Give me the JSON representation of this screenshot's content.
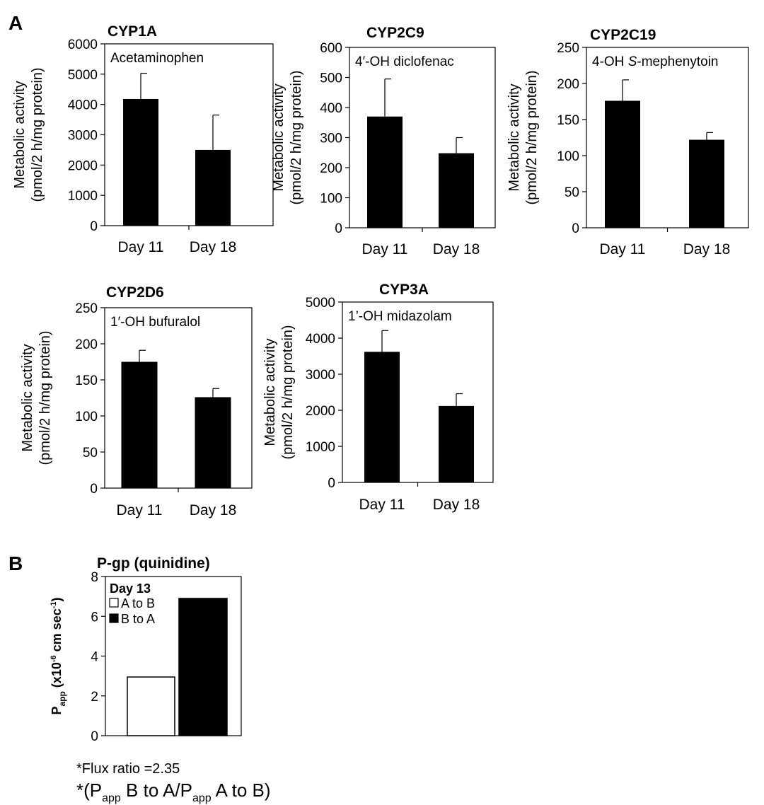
{
  "panel_labels": {
    "a": "A",
    "b": "B"
  },
  "y_label": {
    "line1": "Metabolic activity",
    "line2": "(pmol/2 h/mg protein)"
  },
  "chart_data": [
    {
      "type": "bar",
      "title": "CYP1A",
      "substrate": "Acetaminophen",
      "categories": [
        "Day 11",
        "Day 18"
      ],
      "values": [
        4180,
        2500
      ],
      "errors": [
        850,
        1150
      ],
      "ylim": [
        0,
        6000
      ],
      "yticks": [
        0,
        1000,
        2000,
        3000,
        4000,
        5000,
        6000
      ],
      "ylabel": "Metabolic activity (pmol/2 h/mg protein)"
    },
    {
      "type": "bar",
      "title": "CYP2C9",
      "substrate": "4′-OH diclofenac",
      "categories": [
        "Day 11",
        "Day 18"
      ],
      "values": [
        370,
        248
      ],
      "errors": [
        125,
        52
      ],
      "ylim": [
        0,
        600
      ],
      "yticks": [
        0,
        100,
        200,
        300,
        400,
        500,
        600
      ],
      "ylabel": "Metabolic activity (pmol/2 h/mg protein)"
    },
    {
      "type": "bar",
      "title": "CYP2C19",
      "substrate_parts": [
        "4-OH ",
        "S",
        "-mephenytoin"
      ],
      "categories": [
        "Day 11",
        "Day 18"
      ],
      "values": [
        176,
        122
      ],
      "errors": [
        29,
        10
      ],
      "ylim": [
        0,
        250
      ],
      "yticks": [
        0,
        50,
        100,
        150,
        200,
        250
      ],
      "ylabel": "Metabolic activity (pmol/2 h/mg protein)"
    },
    {
      "type": "bar",
      "title": "CYP2D6",
      "substrate": "1′-OH bufuralol",
      "categories": [
        "Day 11",
        "Day 18"
      ],
      "values": [
        175,
        126
      ],
      "errors": [
        16,
        12
      ],
      "ylim": [
        0,
        250
      ],
      "yticks": [
        0,
        50,
        100,
        150,
        200,
        250
      ],
      "ylabel": "Metabolic activity (pmol/2 h/mg protein)"
    },
    {
      "type": "bar",
      "title": "CYP3A",
      "substrate": "1’-OH midazolam",
      "categories": [
        "Day 11",
        "Day 18"
      ],
      "values": [
        3620,
        2120
      ],
      "errors": [
        590,
        340
      ],
      "ylim": [
        0,
        5000
      ],
      "yticks": [
        0,
        1000,
        2000,
        3000,
        4000,
        5000
      ],
      "ylabel": "Metabolic activity (pmol/2 h/mg protein)"
    },
    {
      "type": "bar",
      "title": "P-gp (quinidine)",
      "legend_title": "Day 13",
      "series": [
        {
          "name": "A to B",
          "value": 2.95,
          "color": "#ffffff"
        },
        {
          "name": "B to A",
          "value": 6.9,
          "color": "#000000"
        }
      ],
      "ylim": [
        0,
        8
      ],
      "yticks": [
        0,
        2,
        4,
        6,
        8
      ],
      "ylabel_parts": [
        "P",
        "app",
        " (x10",
        "-6",
        " cm sec",
        "-1",
        ")"
      ]
    }
  ],
  "footnote": {
    "line1": "*Flux ratio =2.35",
    "line2_parts": [
      "*(P",
      "app",
      " B to A/P",
      "app",
      " A to B)"
    ]
  },
  "colors": {
    "bar": "#000000",
    "axis": "#000000",
    "background": "#ffffff"
  }
}
